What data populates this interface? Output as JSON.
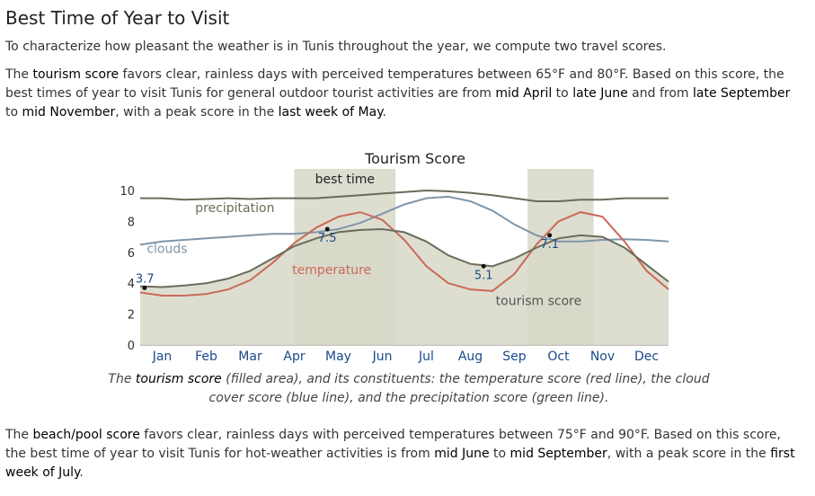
{
  "heading": "Best Time of Year to Visit",
  "intro": "To characterize how pleasant the weather is in Tunis throughout the year, we compute two travel scores.",
  "tourism_paragraph": {
    "t1": "The ",
    "k1": "tourism score",
    "t2": " favors clear, rainless days with perceived temperatures between 65°F and 80°F. Based on this score, the best times of year to visit Tunis for general outdoor tourist activities are from ",
    "k2": "mid April",
    "t3": " to ",
    "k3": "late June",
    "t4": " and from ",
    "k4": "late September",
    "t5": " to ",
    "k5": "mid November",
    "t6": ", with a peak score in the ",
    "k6": "last week of May",
    "t7": "."
  },
  "caption": {
    "c1": "The ",
    "c2": "tourism score",
    "c3": " (filled area), and its constituents: the temperature score (red line), the cloud cover score (blue line), and the precipitation score (green line)."
  },
  "beach_paragraph": {
    "t1": "The ",
    "k1": "beach/pool score",
    "t2": " favors clear, rainless days with perceived temperatures between 75°F and 90°F. Based on this score, the best time of year to visit Tunis for hot-weather activities is from ",
    "k2": "mid June",
    "t3": " to ",
    "k3": "mid September",
    "t4": ", with a peak score in the ",
    "k4": "first week of July",
    "t5": "."
  },
  "chart_data": {
    "type": "area",
    "title": "Tourism Score",
    "categories": [
      "Jan",
      "Feb",
      "Mar",
      "Apr",
      "May",
      "Jun",
      "Jul",
      "Aug",
      "Sep",
      "Oct",
      "Nov",
      "Dec"
    ],
    "ylim": [
      0,
      10
    ],
    "yticks": [
      0,
      2,
      4,
      6,
      8,
      10
    ],
    "best_time_label": "best time",
    "best_time_periods": [
      [
        3.5,
        5.8
      ],
      [
        8.8,
        10.3
      ]
    ],
    "x": [
      0,
      0.5,
      1,
      1.5,
      2,
      2.5,
      3,
      3.5,
      4,
      4.5,
      5,
      5.5,
      6,
      6.5,
      7,
      7.5,
      8,
      8.5,
      9,
      9.5,
      10,
      10.5,
      11,
      11.5,
      12
    ],
    "series": [
      {
        "name": "tourism score",
        "color": "#6b6d5c",
        "fill": "#d8d8c8",
        "values": [
          3.8,
          3.75,
          3.85,
          4.0,
          4.3,
          4.8,
          5.6,
          6.4,
          6.9,
          7.3,
          7.45,
          7.5,
          7.3,
          6.7,
          5.8,
          5.25,
          5.1,
          5.6,
          6.3,
          6.9,
          7.1,
          7.0,
          6.3,
          5.2,
          4.1
        ]
      },
      {
        "name": "temperature",
        "color": "#c96a5a",
        "values": [
          3.4,
          3.2,
          3.2,
          3.3,
          3.6,
          4.2,
          5.3,
          6.6,
          7.6,
          8.3,
          8.6,
          8.1,
          6.8,
          5.1,
          4.0,
          3.6,
          3.5,
          4.6,
          6.5,
          8.0,
          8.6,
          8.3,
          6.7,
          4.8,
          3.6
        ]
      },
      {
        "name": "clouds",
        "color": "#7f96aa",
        "values": [
          6.5,
          6.7,
          6.8,
          6.9,
          7.0,
          7.1,
          7.2,
          7.2,
          7.3,
          7.5,
          7.9,
          8.5,
          9.1,
          9.5,
          9.6,
          9.3,
          8.7,
          7.8,
          7.1,
          6.7,
          6.7,
          6.8,
          6.85,
          6.8,
          6.7
        ]
      },
      {
        "name": "precipitation",
        "color": "#6a6c5a",
        "values": [
          9.5,
          9.5,
          9.4,
          9.45,
          9.5,
          9.45,
          9.5,
          9.5,
          9.5,
          9.6,
          9.7,
          9.8,
          9.9,
          10.0,
          9.95,
          9.85,
          9.7,
          9.5,
          9.3,
          9.3,
          9.4,
          9.4,
          9.5,
          9.5,
          9.5
        ]
      }
    ],
    "point_labels": [
      {
        "x": 0.1,
        "y": 3.7,
        "text": "3.7"
      },
      {
        "x": 4.25,
        "y": 7.5,
        "text": "7.5"
      },
      {
        "x": 7.8,
        "y": 5.1,
        "text": "5.1"
      },
      {
        "x": 9.3,
        "y": 7.1,
        "text": "7.1"
      }
    ],
    "series_labels": {
      "precipitation": "precipitation",
      "clouds": "clouds",
      "temperature": "temperature",
      "tourism": "tourism score"
    }
  }
}
